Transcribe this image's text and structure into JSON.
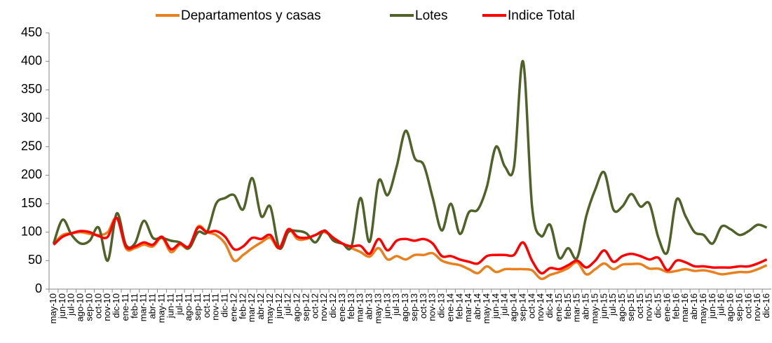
{
  "chart_data": {
    "type": "line",
    "categories": [
      "may-10",
      "jun-10",
      "jul-10",
      "ago-10",
      "sep-10",
      "oct-10",
      "nov-10",
      "dic-10",
      "ene-11",
      "feb-11",
      "mar-11",
      "abr-11",
      "may-11",
      "jun-11",
      "jul-11",
      "ago-11",
      "sep-11",
      "oct-11",
      "nov-11",
      "dic-11",
      "ene-12",
      "feb-12",
      "mar-12",
      "abr-12",
      "may-12",
      "jun-12",
      "jul-12",
      "ago-12",
      "sep-12",
      "oct-12",
      "nov-12",
      "dic-12",
      "ene-13",
      "feb-13",
      "mar-13",
      "abr-13",
      "may-13",
      "jun-13",
      "jul-13",
      "ago-13",
      "sep-13",
      "oct-13",
      "nov-13",
      "dic-13",
      "ene-14",
      "feb-14",
      "mar-14",
      "abr-14",
      "may-14",
      "jun-14",
      "jul-14",
      "ago-14",
      "sep-14",
      "oct-14",
      "nov-14",
      "dic-14",
      "ene-15",
      "feb-15",
      "mar-15",
      "abr-15",
      "may-15",
      "jun-15",
      "jul-15",
      "ago-15",
      "sep-15",
      "oct-15",
      "nov-15",
      "dic-15",
      "ene-16",
      "feb-16",
      "mar-16",
      "abr-16",
      "may-16",
      "jun-16",
      "jul-16",
      "ago-16",
      "sep-16",
      "oct-16",
      "nov-16",
      "dic-16"
    ],
    "series": [
      {
        "name": "Departamentos y casas",
        "color": "#e8801e",
        "values": [
          80,
          95,
          98,
          100,
          97,
          95,
          100,
          125,
          72,
          72,
          78,
          75,
          90,
          65,
          78,
          72,
          110,
          100,
          95,
          80,
          50,
          60,
          72,
          82,
          90,
          72,
          105,
          88,
          88,
          95,
          100,
          90,
          80,
          72,
          65,
          57,
          72,
          52,
          58,
          52,
          60,
          60,
          63,
          50,
          45,
          42,
          35,
          28,
          40,
          30,
          35,
          35,
          35,
          33,
          18,
          25,
          30,
          37,
          47,
          26,
          35,
          45,
          35,
          43,
          44,
          44,
          36,
          36,
          30,
          32,
          35,
          32,
          33,
          30,
          26,
          28,
          30,
          30,
          35,
          42
        ]
      },
      {
        "name": "Lotes",
        "color": "#4f6228",
        "values": [
          80,
          122,
          95,
          80,
          85,
          108,
          50,
          133,
          78,
          80,
          120,
          90,
          90,
          85,
          82,
          72,
          100,
          100,
          150,
          160,
          165,
          140,
          195,
          128,
          145,
          72,
          100,
          102,
          98,
          82,
          103,
          85,
          80,
          75,
          160,
          83,
          190,
          165,
          215,
          278,
          230,
          218,
          160,
          103,
          150,
          97,
          135,
          140,
          180,
          250,
          215,
          215,
          400,
          145,
          93,
          113,
          55,
          72,
          55,
          128,
          175,
          205,
          140,
          145,
          167,
          145,
          150,
          90,
          65,
          157,
          128,
          100,
          95,
          80,
          110,
          105,
          95,
          102,
          113,
          108
        ]
      },
      {
        "name": "Indice Total",
        "color": "#ff0000",
        "values": [
          78,
          92,
          98,
          102,
          100,
          93,
          92,
          125,
          75,
          75,
          82,
          78,
          92,
          70,
          80,
          75,
          108,
          100,
          102,
          92,
          70,
          75,
          90,
          88,
          95,
          72,
          105,
          92,
          90,
          95,
          102,
          90,
          80,
          75,
          76,
          62,
          88,
          68,
          85,
          88,
          85,
          88,
          80,
          58,
          58,
          52,
          48,
          45,
          58,
          60,
          60,
          60,
          82,
          50,
          28,
          37,
          35,
          42,
          50,
          38,
          50,
          68,
          48,
          58,
          62,
          58,
          52,
          55,
          33,
          50,
          47,
          40,
          40,
          38,
          38,
          38,
          40,
          40,
          45,
          52
        ]
      }
    ],
    "ylim": [
      0,
      450
    ],
    "yticks": [
      0,
      50,
      100,
      150,
      200,
      250,
      300,
      350,
      400,
      450
    ]
  }
}
